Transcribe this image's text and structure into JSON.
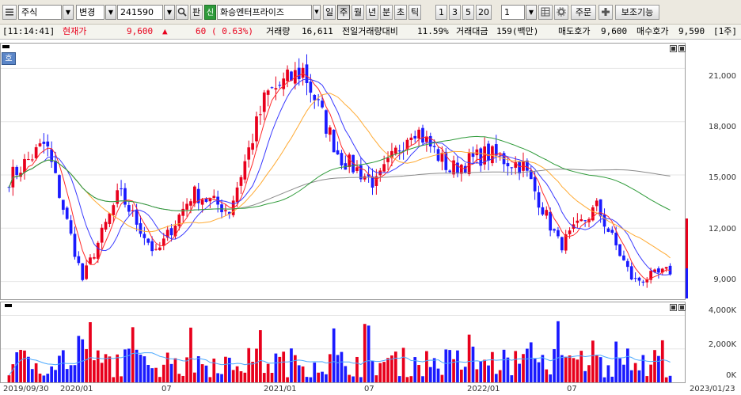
{
  "toolbar": {
    "market": "주식",
    "change_label": "변경",
    "code": "241590",
    "search_icon": "magnifier-icon",
    "board_label": "판",
    "credit_badge": "신",
    "stock_name": "화승엔터프라이즈",
    "periods": [
      "일",
      "주",
      "월",
      "년",
      "분",
      "초",
      "틱"
    ],
    "active_period": "주",
    "multipliers": [
      "1",
      "3",
      "5",
      "20"
    ],
    "count_value": "1",
    "order_label": "주문",
    "plus_icon": "plus-icon",
    "aux_label": "보조기능"
  },
  "quote": {
    "time": "[11:14:41]",
    "price_label": "현재가",
    "price": "9,600",
    "change": "60",
    "change_pct": "( 0.63%)",
    "volume_label": "거래량",
    "volume": "16,611",
    "prev_volume_ratio_label": "전일거래량대비",
    "prev_volume_ratio": "11.59%",
    "trade_value_label": "거래대금",
    "trade_value": "159(백만)",
    "ask_label": "매도호가",
    "ask": "9,600",
    "bid_label": "매수호가",
    "bid": "9,590",
    "unit": "[1주]",
    "up_color": "#e8001c",
    "down_color": "#1a1aff"
  },
  "price_chart": {
    "badge": "호",
    "y_ticks": [
      "21,000",
      "18,000",
      "15,000",
      "12,000",
      "9,000"
    ],
    "current_price_marker": 9600
  },
  "volume_chart": {
    "y_ticks": [
      "4,000K",
      "2,000K",
      "0K"
    ]
  },
  "x_ticks": [
    "2019/09/30",
    "2020/01",
    "07",
    "2021/01",
    "07",
    "2022/01",
    "07",
    "2023/01/23"
  ],
  "chart_data": {
    "type": "candlestick",
    "period": "weekly",
    "x_range": [
      "2019/09/30",
      "2023/01/23"
    ],
    "price_ylim": [
      8000,
      22400
    ],
    "price_anchor_points": [
      {
        "date": "2019/10",
        "close": 14800
      },
      {
        "date": "2020/01",
        "close": 16800
      },
      {
        "date": "2020/03",
        "close": 9100
      },
      {
        "date": "2020/05",
        "close": 14000
      },
      {
        "date": "2020/07",
        "close": 10500
      },
      {
        "date": "2020/10",
        "close": 14000
      },
      {
        "date": "2021/01",
        "close": 13000
      },
      {
        "date": "2021/03",
        "close": 19500
      },
      {
        "date": "2021/05",
        "close": 20900
      },
      {
        "date": "2021/07",
        "close": 16000
      },
      {
        "date": "2021/09",
        "close": 14500
      },
      {
        "date": "2021/12",
        "close": 17800
      },
      {
        "date": "2022/02",
        "close": 15300
      },
      {
        "date": "2022/05",
        "close": 16200
      },
      {
        "date": "2022/07",
        "close": 15500
      },
      {
        "date": "2022/09",
        "close": 11000
      },
      {
        "date": "2022/11",
        "close": 13200
      },
      {
        "date": "2022/12",
        "close": 9000
      },
      {
        "date": "2023/01",
        "close": 9600
      }
    ],
    "volume_ylim": [
      0,
      4500
    ],
    "volume_unit": "K",
    "moving_average_colors": [
      "#ff2b2b",
      "#3a3aff",
      "#ffaa33",
      "#8a8a8a",
      "#2f9b3a"
    ]
  }
}
